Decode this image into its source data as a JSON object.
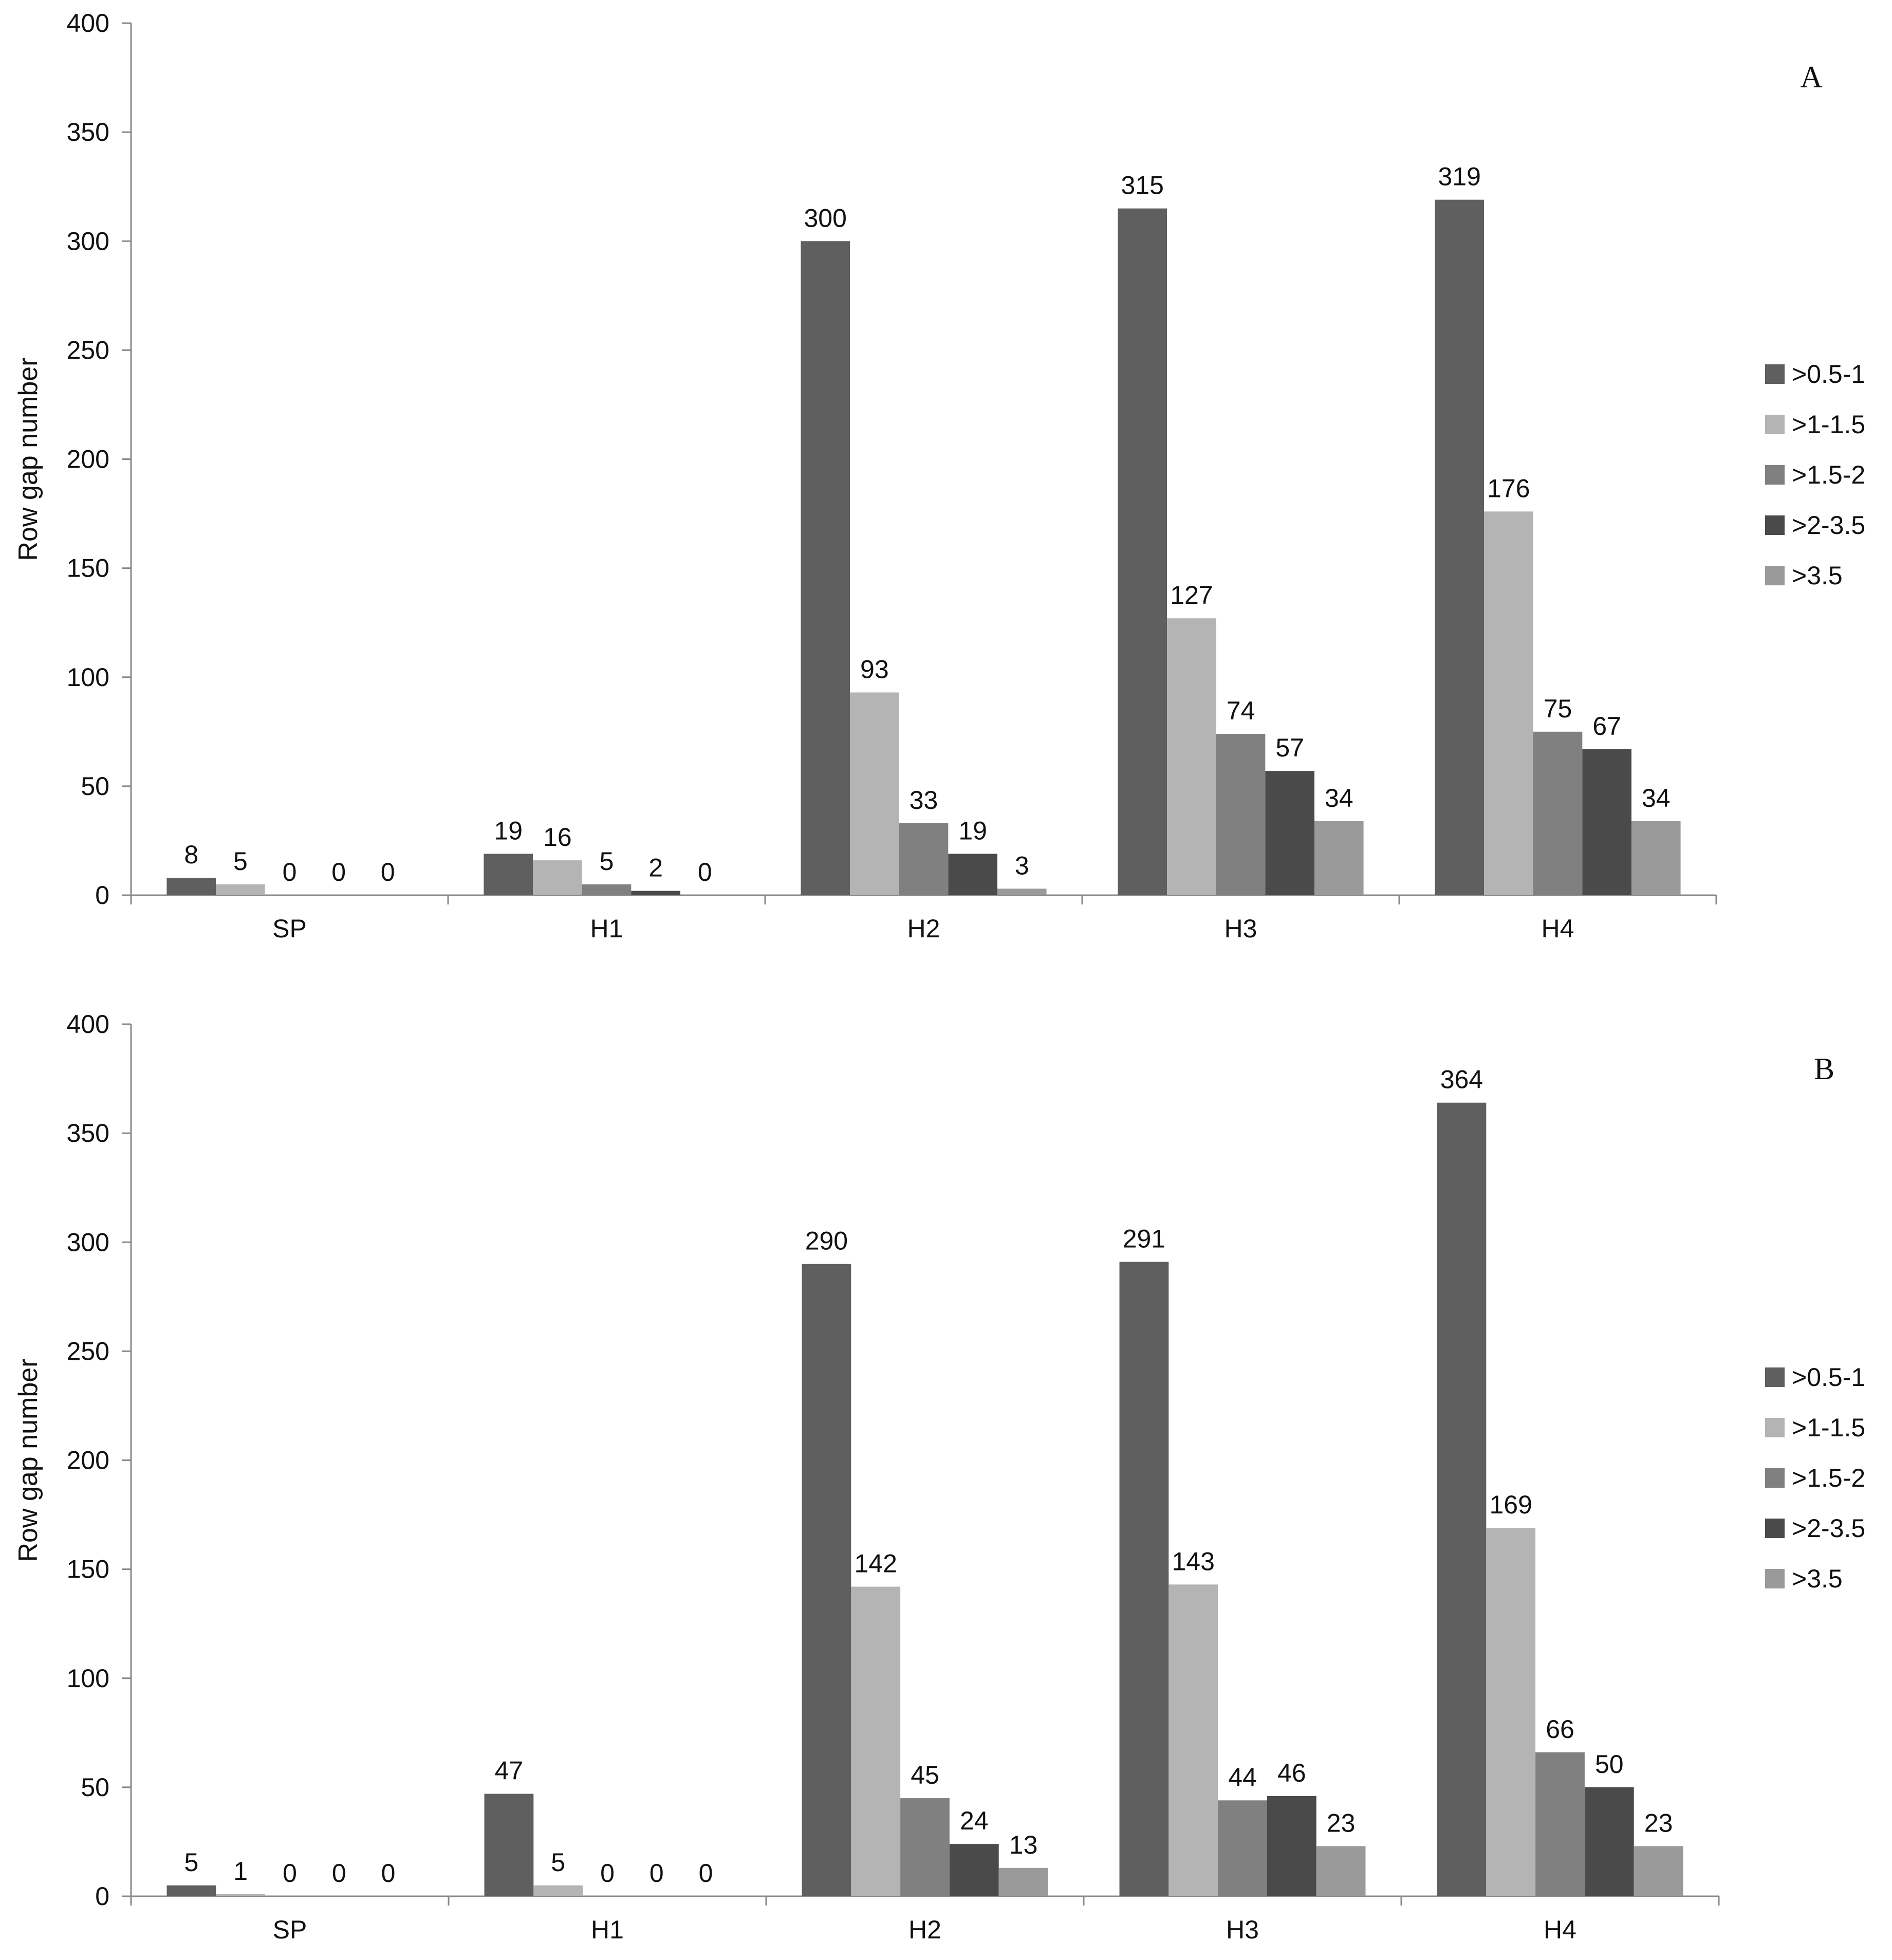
{
  "chart_data": [
    {
      "type": "bar",
      "panel_label": "A",
      "categories": [
        "SP",
        "H1",
        "H2",
        "H3",
        "H4"
      ],
      "series": [
        {
          "name": ">0.5-1",
          "color": "#5f5f5f",
          "values": [
            8,
            19,
            300,
            315,
            319
          ]
        },
        {
          "name": ">1-1.5",
          "color": "#b4b4b4",
          "values": [
            5,
            16,
            93,
            127,
            176
          ]
        },
        {
          "name": ">1.5-2",
          "color": "#808080",
          "values": [
            0,
            5,
            33,
            74,
            75
          ]
        },
        {
          "name": ">2-3.5",
          "color": "#4a4a4a",
          "values": [
            0,
            2,
            19,
            57,
            67
          ]
        },
        {
          "name": ">3.5",
          "color": "#9a9a9a",
          "values": [
            0,
            0,
            3,
            34,
            34
          ]
        }
      ],
      "ylabel": "Row gap number",
      "xlabel": "",
      "ylim": [
        0,
        400
      ],
      "yticks": [
        0,
        50,
        100,
        150,
        200,
        250,
        300,
        350,
        400
      ],
      "legend_position": "right",
      "grid": false
    },
    {
      "type": "bar",
      "panel_label": "B",
      "categories": [
        "SP",
        "H1",
        "H2",
        "H3",
        "H4"
      ],
      "series": [
        {
          "name": ">0.5-1",
          "color": "#5f5f5f",
          "values": [
            5,
            47,
            290,
            291,
            364
          ]
        },
        {
          "name": ">1-1.5",
          "color": "#b4b4b4",
          "values": [
            1,
            5,
            142,
            143,
            169
          ]
        },
        {
          "name": ">1.5-2",
          "color": "#808080",
          "values": [
            0,
            0,
            45,
            44,
            66
          ]
        },
        {
          "name": ">2-3.5",
          "color": "#4a4a4a",
          "values": [
            0,
            0,
            24,
            46,
            50
          ]
        },
        {
          "name": ">3.5",
          "color": "#9a9a9a",
          "values": [
            0,
            0,
            13,
            23,
            23
          ]
        }
      ],
      "ylabel": "Row gap number",
      "xlabel": "",
      "ylim": [
        0,
        400
      ],
      "yticks": [
        0,
        50,
        100,
        150,
        200,
        250,
        300,
        350,
        400
      ],
      "legend_position": "right",
      "grid": false
    }
  ]
}
